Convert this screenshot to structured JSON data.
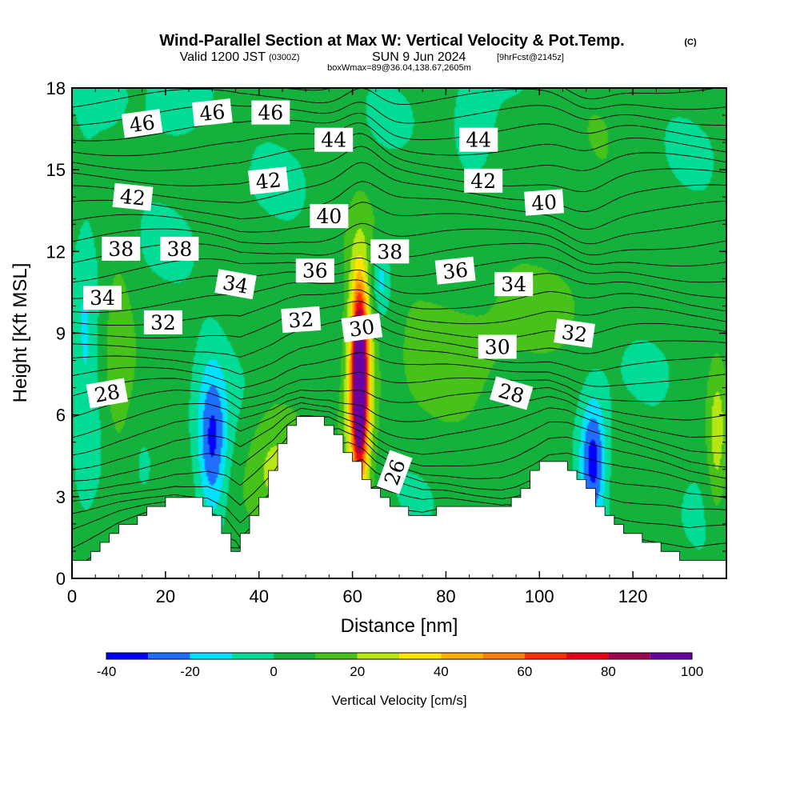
{
  "header": {
    "title": "Wind-Parallel Section at Max W: Vertical Velocity & Pot.Temp.",
    "copyright": "(C)",
    "valid_prefix": "Valid 1200 JST",
    "valid_utc": "(0300Z)",
    "valid_date": "SUN 9 Jun 2024",
    "forecast": "[9hrFcst@2145z]",
    "box_info": "boxWmax=89@36.04,138.67,2605m"
  },
  "colors": {
    "bins": [
      "#0000ff",
      "#1e6eff",
      "#00e1ff",
      "#00dc96",
      "#15b13d",
      "#46c21a",
      "#b7e612",
      "#ffe400",
      "#ffb000",
      "#ff7f00",
      "#ff3000",
      "#e8001a",
      "#a00050",
      "#6a00a0"
    ],
    "terrain": "#ffffff",
    "contour": "#000000"
  },
  "chart_data": {
    "type": "heatmap",
    "title": "Wind-Parallel Section at Max W: Vertical Velocity & Pot.Temp.",
    "xlabel": "Distance [nm]",
    "ylabel": "Height [Kft MSL]",
    "xlim": [
      0,
      140
    ],
    "ylim": [
      0,
      18
    ],
    "x_ticks": [
      "0",
      "20",
      "40",
      "60",
      "80",
      "100",
      "120"
    ],
    "y_ticks": [
      "0",
      "3",
      "6",
      "9",
      "12",
      "15",
      "18"
    ],
    "terrain_profile": [
      [
        0,
        0.3
      ],
      [
        3,
        0.6
      ],
      [
        6,
        1.0
      ],
      [
        10,
        1.6
      ],
      [
        16,
        2.3
      ],
      [
        22,
        2.9
      ],
      [
        29,
        2.9
      ],
      [
        33,
        2.2
      ],
      [
        36,
        1.0
      ],
      [
        39,
        1.9
      ],
      [
        43,
        3.3
      ],
      [
        46,
        4.9
      ],
      [
        49,
        5.9
      ],
      [
        55,
        5.9
      ],
      [
        59,
        4.9
      ],
      [
        62,
        4.3
      ],
      [
        65,
        3.3
      ],
      [
        68,
        2.9
      ],
      [
        72,
        2.5
      ],
      [
        75,
        2.3
      ],
      [
        80,
        2.5
      ],
      [
        86,
        2.5
      ],
      [
        92,
        2.6
      ],
      [
        95,
        2.9
      ],
      [
        99,
        3.6
      ],
      [
        102,
        4.3
      ],
      [
        106,
        4.3
      ],
      [
        110,
        3.6
      ],
      [
        114,
        2.7
      ],
      [
        118,
        2.0
      ],
      [
        122,
        1.6
      ],
      [
        127,
        1.2
      ],
      [
        132,
        0.7
      ],
      [
        140,
        0.6
      ]
    ],
    "vertical_velocity_features": [
      {
        "name": "updraft-core",
        "x": 61.5,
        "z": 7.2,
        "w": 100,
        "sx": 0.9,
        "sz": 1.9
      },
      {
        "name": "updraft-halo",
        "x": 61.5,
        "z": 7.4,
        "w": 60,
        "sx": 2.0,
        "sz": 2.9
      },
      {
        "name": "downdraft-left",
        "x": 30,
        "z": 4.9,
        "w": -35,
        "sx": 2.2,
        "sz": 2.0
      },
      {
        "name": "downdraft-right",
        "x": 111.5,
        "z": 4.3,
        "w": -40,
        "sx": 2.0,
        "sz": 1.6
      },
      {
        "name": "downdraft-top-left",
        "x": 23,
        "z": 17.4,
        "w": -15,
        "sx": 4.0,
        "sz": 0.9
      },
      {
        "name": "downdraft-top-right",
        "x": 86,
        "z": 16.1,
        "w": -15,
        "sx": 3.0,
        "sz": 1.3
      },
      {
        "name": "downdraft-far-left",
        "x": 3,
        "z": 8.5,
        "w": -12,
        "sx": 1.8,
        "sz": 4.0
      },
      {
        "name": "downdraft-behind-peak",
        "x": 66,
        "z": 11.0,
        "w": -22,
        "sx": 1.6,
        "sz": 1.0
      },
      {
        "name": "updraft-left-hills",
        "x": 43,
        "z": 4.0,
        "w": 20,
        "sx": 4.2,
        "sz": 1.8
      },
      {
        "name": "updraft-mid-band",
        "x": 84,
        "z": 9.5,
        "w": 10,
        "sx": 14,
        "sz": 3.3
      },
      {
        "name": "updraft-upper-right",
        "x": 112,
        "z": 13.5,
        "w": 8,
        "sx": 8,
        "sz": 2.5
      },
      {
        "name": "updraft-far-right",
        "x": 138,
        "z": 5.0,
        "w": 20,
        "sx": 1.5,
        "sz": 2.2
      },
      {
        "name": "updraft-left-column",
        "x": 10,
        "z": 7.5,
        "w": 14,
        "sx": 2.2,
        "sz": 3.2
      }
    ],
    "theta_contour_labels": [
      {
        "text": "46",
        "x": 15,
        "z": 16.7,
        "rot": -8
      },
      {
        "text": "46",
        "x": 30,
        "z": 17.1,
        "rot": -6
      },
      {
        "text": "46",
        "x": 42.5,
        "z": 17.1,
        "rot": 0
      },
      {
        "text": "44",
        "x": 56,
        "z": 16.1,
        "rot": 0
      },
      {
        "text": "44",
        "x": 87,
        "z": 16.1,
        "rot": 0
      },
      {
        "text": "42",
        "x": 13,
        "z": 14.0,
        "rot": 6
      },
      {
        "text": "42",
        "x": 42,
        "z": 14.6,
        "rot": -6
      },
      {
        "text": "42",
        "x": 88,
        "z": 14.6,
        "rot": 0
      },
      {
        "text": "40",
        "x": 55,
        "z": 13.3,
        "rot": 0
      },
      {
        "text": "40",
        "x": 101,
        "z": 13.8,
        "rot": -4
      },
      {
        "text": "38",
        "x": 10.5,
        "z": 12.1,
        "rot": 0
      },
      {
        "text": "38",
        "x": 23,
        "z": 12.1,
        "rot": 0
      },
      {
        "text": "38",
        "x": 68,
        "z": 12.0,
        "rot": 0
      },
      {
        "text": "36",
        "x": 52,
        "z": 11.3,
        "rot": 0
      },
      {
        "text": "36",
        "x": 82,
        "z": 11.3,
        "rot": -6
      },
      {
        "text": "34",
        "x": 6.5,
        "z": 10.3,
        "rot": 0
      },
      {
        "text": "34",
        "x": 35,
        "z": 10.8,
        "rot": 10
      },
      {
        "text": "34",
        "x": 94.5,
        "z": 10.8,
        "rot": 0
      },
      {
        "text": "32",
        "x": 19.5,
        "z": 9.4,
        "rot": 0
      },
      {
        "text": "32",
        "x": 49,
        "z": 9.5,
        "rot": -4
      },
      {
        "text": "32",
        "x": 107.5,
        "z": 9.0,
        "rot": 8
      },
      {
        "text": "30",
        "x": 62,
        "z": 9.2,
        "rot": -8
      },
      {
        "text": "30",
        "x": 91,
        "z": 8.5,
        "rot": 0
      },
      {
        "text": "28",
        "x": 7.5,
        "z": 6.8,
        "rot": -10
      },
      {
        "text": "28",
        "x": 94,
        "z": 6.8,
        "rot": 16
      },
      {
        "text": "26",
        "x": 69,
        "z": 3.9,
        "rot": -70
      }
    ],
    "colorbar": {
      "label": "Vertical Velocity [cm/s]",
      "levels": [
        -40,
        -30,
        -20,
        -10,
        0,
        10,
        20,
        30,
        40,
        50,
        60,
        70,
        80,
        90,
        100
      ],
      "tick_labels": [
        "-40",
        "-20",
        "0",
        "20",
        "40",
        "60",
        "80",
        "100"
      ]
    }
  }
}
